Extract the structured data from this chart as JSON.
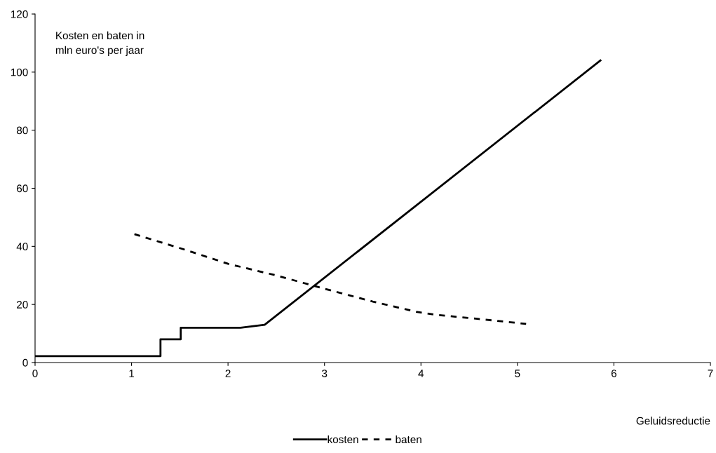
{
  "chart_data": {
    "type": "line",
    "ylabel": "Kosten en baten in\nmln euro's per jaar",
    "xlabel": "Geluidsreductie",
    "xlim": [
      0,
      7
    ],
    "xticks": [
      0,
      1,
      2,
      3,
      4,
      5,
      6,
      7
    ],
    "ylim": [
      0,
      120
    ],
    "yticks": [
      0,
      20,
      40,
      60,
      80,
      100,
      120
    ],
    "grid": false,
    "legend": "bottom",
    "marker": "none",
    "series": [
      {
        "name": "kosten",
        "color": "#000000",
        "line_style": "solid",
        "x": [
          0,
          1.3,
          1.3,
          1.51,
          1.51,
          2.13,
          2.38,
          5.86
        ],
        "values": [
          2.2,
          2.2,
          8,
          8,
          12,
          12,
          13,
          104
        ]
      },
      {
        "name": "baten",
        "color": "#000000",
        "line_style": "dashed",
        "x": [
          1.03,
          1.54,
          2.0,
          2.5,
          2.99,
          3.5,
          3.95,
          4.14,
          4.6,
          5.09
        ],
        "values": [
          44.2,
          39,
          34,
          30,
          25.5,
          21,
          17.5,
          16.5,
          15,
          13.3
        ]
      }
    ]
  }
}
